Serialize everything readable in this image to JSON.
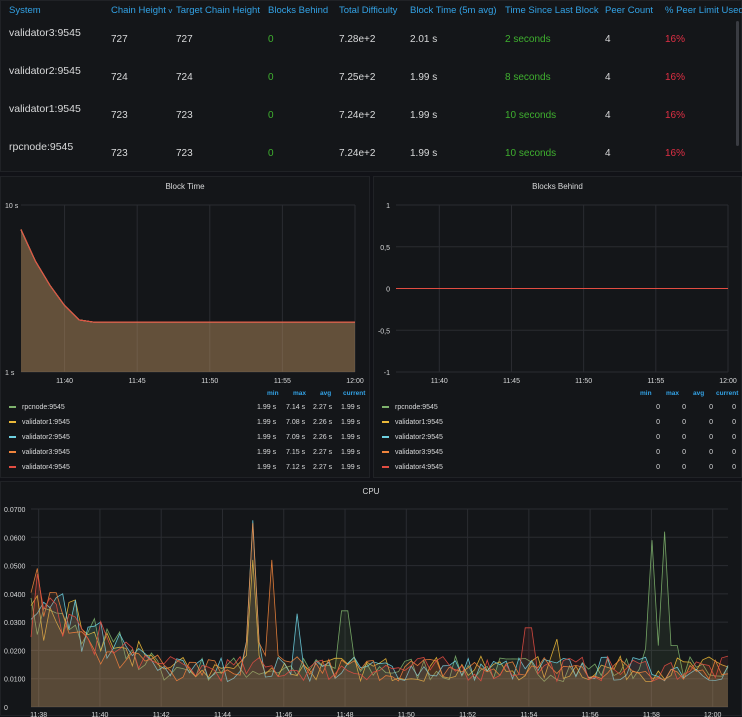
{
  "table": {
    "headers": [
      "System",
      "Chain Height",
      "Target Chain Height",
      "Blocks Behind",
      "Total Difficulty",
      "Block Time (5m avg)",
      "Time Since Last Block",
      "Peer Count",
      "% Peer Limit Used"
    ],
    "sort_indicator": "˅",
    "rows": [
      {
        "system": "validator3:9545",
        "chain_height": "727",
        "target": "727",
        "behind": "0",
        "difficulty": "7.28e+2",
        "block_time": "2.01 s",
        "since": "2 seconds",
        "peers": "4",
        "peer_limit": "16%"
      },
      {
        "system": "validator2:9545",
        "chain_height": "724",
        "target": "724",
        "behind": "0",
        "difficulty": "7.25e+2",
        "block_time": "1.99 s",
        "since": "8 seconds",
        "peers": "4",
        "peer_limit": "16%"
      },
      {
        "system": "validator1:9545",
        "chain_height": "723",
        "target": "723",
        "behind": "0",
        "difficulty": "7.24e+2",
        "block_time": "1.99 s",
        "since": "10 seconds",
        "peers": "4",
        "peer_limit": "16%"
      },
      {
        "system": "rpcnode:9545",
        "chain_height": "723",
        "target": "723",
        "behind": "0",
        "difficulty": "7.24e+2",
        "block_time": "1.99 s",
        "since": "10 seconds",
        "peers": "4",
        "peer_limit": "16%"
      }
    ]
  },
  "block_time": {
    "title": "Block Time",
    "legend_headers": [
      "min",
      "max",
      "avg",
      "current"
    ],
    "legend": [
      {
        "name": "rpcnode:9545",
        "color": "#7eb26d",
        "min": "1.99 s",
        "max": "7.14 s",
        "avg": "2.27 s",
        "current": "1.99 s"
      },
      {
        "name": "validator1:9545",
        "color": "#eab839",
        "min": "1.99 s",
        "max": "7.08 s",
        "avg": "2.26 s",
        "current": "1.99 s"
      },
      {
        "name": "validator2:9545",
        "color": "#6ed0e0",
        "min": "1.99 s",
        "max": "7.09 s",
        "avg": "2.26 s",
        "current": "1.99 s"
      },
      {
        "name": "validator3:9545",
        "color": "#ef843c",
        "min": "1.99 s",
        "max": "7.15 s",
        "avg": "2.27 s",
        "current": "1.99 s"
      },
      {
        "name": "validator4:9545",
        "color": "#e24d42",
        "min": "1.99 s",
        "max": "7.12 s",
        "avg": "2.27 s",
        "current": "1.99 s"
      }
    ]
  },
  "blocks_behind": {
    "title": "Blocks Behind",
    "legend_headers": [
      "min",
      "max",
      "avg",
      "current"
    ],
    "legend": [
      {
        "name": "rpcnode:9545",
        "color": "#7eb26d",
        "min": "0",
        "max": "0",
        "avg": "0",
        "current": "0"
      },
      {
        "name": "validator1:9545",
        "color": "#eab839",
        "min": "0",
        "max": "0",
        "avg": "0",
        "current": "0"
      },
      {
        "name": "validator2:9545",
        "color": "#6ed0e0",
        "min": "0",
        "max": "0",
        "avg": "0",
        "current": "0"
      },
      {
        "name": "validator3:9545",
        "color": "#ef843c",
        "min": "0",
        "max": "0",
        "avg": "0",
        "current": "0"
      },
      {
        "name": "validator4:9545",
        "color": "#e24d42",
        "min": "0",
        "max": "0",
        "avg": "0",
        "current": "0"
      }
    ]
  },
  "cpu": {
    "title": "CPU"
  },
  "chart_data": [
    {
      "type": "area",
      "title": "Block Time",
      "scale": "log",
      "y_ticks": [
        "10 s",
        "1 s"
      ],
      "x_ticks": [
        "11:40",
        "11:45",
        "11:50",
        "11:55",
        "12:00"
      ],
      "x_range": [
        "11:37",
        "12:00"
      ],
      "ylim": [
        1,
        10
      ],
      "series": [
        {
          "name": "rpcnode:9545",
          "x": [
            "11:37",
            "11:38",
            "11:39",
            "11:40",
            "11:41",
            "11:42",
            "12:00"
          ],
          "values": [
            7.14,
            4.6,
            3.3,
            2.5,
            2.05,
            1.99,
            1.99
          ]
        },
        {
          "name": "validator1:9545",
          "x": [
            "11:37",
            "11:38",
            "11:39",
            "11:40",
            "11:41",
            "11:42",
            "12:00"
          ],
          "values": [
            7.08,
            4.6,
            3.3,
            2.5,
            2.05,
            1.99,
            1.99
          ]
        },
        {
          "name": "validator2:9545",
          "x": [
            "11:37",
            "11:38",
            "11:39",
            "11:40",
            "11:41",
            "11:42",
            "12:00"
          ],
          "values": [
            7.09,
            4.6,
            3.3,
            2.5,
            2.05,
            1.99,
            1.99
          ]
        },
        {
          "name": "validator3:9545",
          "x": [
            "11:37",
            "11:38",
            "11:39",
            "11:40",
            "11:41",
            "11:42",
            "12:00"
          ],
          "values": [
            7.15,
            4.6,
            3.3,
            2.5,
            2.05,
            1.99,
            1.99
          ]
        },
        {
          "name": "validator4:9545",
          "x": [
            "11:37",
            "11:38",
            "11:39",
            "11:40",
            "11:41",
            "11:42",
            "12:00"
          ],
          "values": [
            7.12,
            4.6,
            3.3,
            2.5,
            2.05,
            1.99,
            1.99
          ]
        }
      ]
    },
    {
      "type": "line",
      "title": "Blocks Behind",
      "y_ticks": [
        "1",
        "0,5",
        "0",
        "-0,5",
        "-1"
      ],
      "x_ticks": [
        "11:40",
        "11:45",
        "11:50",
        "11:55",
        "12:00"
      ],
      "x_range": [
        "11:37",
        "12:00"
      ],
      "ylim": [
        -1,
        1
      ],
      "series": [
        {
          "name": "rpcnode:9545",
          "values": [
            0,
            0
          ]
        },
        {
          "name": "validator1:9545",
          "values": [
            0,
            0
          ]
        },
        {
          "name": "validator2:9545",
          "values": [
            0,
            0
          ]
        },
        {
          "name": "validator3:9545",
          "values": [
            0,
            0
          ]
        },
        {
          "name": "validator4:9545",
          "values": [
            0,
            0
          ]
        }
      ]
    },
    {
      "type": "line",
      "title": "CPU",
      "y_ticks": [
        "0.0700",
        "0.0600",
        "0.0500",
        "0.0400",
        "0.0300",
        "0.0200",
        "0.0100",
        "0"
      ],
      "x_ticks": [
        "11:38",
        "11:40",
        "11:42",
        "11:44",
        "11:46",
        "11:48",
        "11:50",
        "11:52",
        "11:54",
        "11:56",
        "11:58",
        "12:00"
      ],
      "x_range": [
        "11:37:45",
        "12:00:30"
      ],
      "ylim": [
        0,
        0.07
      ],
      "series": [
        {
          "name": "rpcnode:9545",
          "color": "#7eb26d",
          "spikes": [
            {
              "t": "11:48",
              "v": 0.034
            },
            {
              "t": "11:58",
              "v": 0.059
            },
            {
              "t": "11:58:30",
              "v": 0.062
            }
          ]
        },
        {
          "name": "validator1:9545",
          "color": "#eab839",
          "spikes": [
            {
              "t": "11:45",
              "v": 0.052
            },
            {
              "t": "11:55",
              "v": 0.024
            }
          ]
        },
        {
          "name": "validator2:9545",
          "color": "#6ed0e0",
          "spikes": [
            {
              "t": "11:45",
              "v": 0.066
            },
            {
              "t": "11:46:30",
              "v": 0.033
            }
          ]
        },
        {
          "name": "validator3:9545",
          "color": "#ef843c",
          "spikes": [
            {
              "t": "11:38",
              "v": 0.049
            },
            {
              "t": "11:45",
              "v": 0.065
            },
            {
              "t": "11:45:40",
              "v": 0.052
            }
          ]
        },
        {
          "name": "validator4:9545",
          "color": "#e24d42",
          "spikes": [
            {
              "t": "11:38",
              "v": 0.047
            },
            {
              "t": "11:54",
              "v": 0.028
            }
          ]
        }
      ]
    }
  ]
}
